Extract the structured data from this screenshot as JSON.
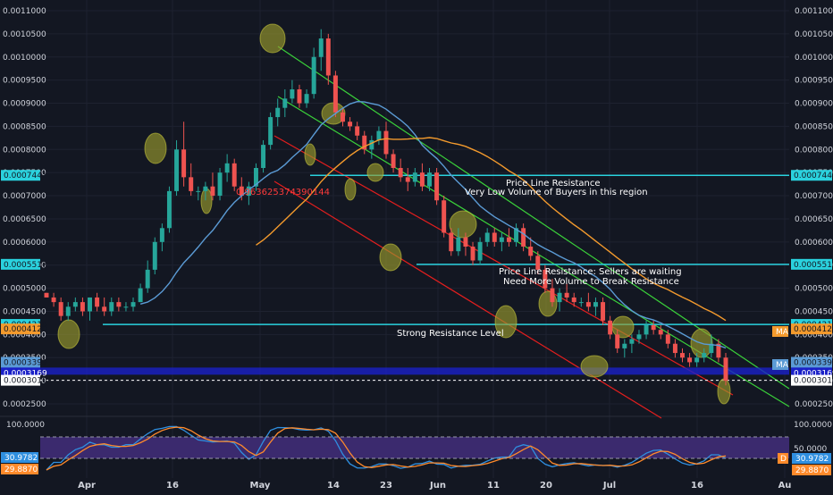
{
  "colors": {
    "background": "#131722",
    "grid": "#1e2230",
    "axis_text": "#d1d4dc",
    "bull": "#26a69a",
    "bear": "#ef5350",
    "ma_fast": "#5b9bd5",
    "ma_slow": "#f39a2d",
    "cyan_line": "#2ad2de",
    "green_channel": "#3ad13a",
    "red_channel": "#e31e1e",
    "highlight": "#9a9a2e",
    "blue_band": "#1a20c8",
    "stoch_band": "#3b2a6e",
    "stoch_k": "#2f8fe0",
    "stoch_d": "#ff8a2b"
  },
  "price_axis": {
    "ticks": [
      "0.0011000",
      "0.0010500",
      "0.0010000",
      "0.0009500",
      "0.0009000",
      "0.0008500",
      "0.0008000",
      "0.0007500",
      "0.0007000",
      "0.0006500",
      "0.0006000",
      "0.0005500",
      "0.0005000",
      "0.0004500",
      "0.0004000",
      "0.0003500",
      "0.0003000",
      "0.0002500"
    ]
  },
  "time_axis": {
    "labels": [
      "Apr",
      "16",
      "May",
      "14",
      "23",
      "Jun",
      "11",
      "20",
      "Jul",
      "16",
      "Au"
    ]
  },
  "price_badges": [
    {
      "text": "0.0007441",
      "color": "#2ad2de",
      "side": "both"
    },
    {
      "text": "0.0005517",
      "color": "#2ad2de",
      "side": "both"
    },
    {
      "text": "0.0004218",
      "color": "#2ad2de",
      "side": "both"
    },
    {
      "text": "0.0004120",
      "color": "#f39a2d",
      "side": "both"
    },
    {
      "text": "0.0003399",
      "color": "#5b9bd5",
      "side": "both"
    },
    {
      "text": "0.0003169",
      "color": "#1a20c8",
      "side": "both"
    },
    {
      "text": "0.0003010",
      "color": "#ffffff",
      "side": "both"
    }
  ],
  "ma_tags": [
    "MA",
    "MA"
  ],
  "stoch": {
    "ticks": [
      "100.0000",
      "50.0000"
    ],
    "badges": [
      {
        "text": "30.9782",
        "color": "#2f8fe0"
      },
      {
        "text": "29.8870",
        "color": "#ff8a2b"
      }
    ],
    "d_tag": "D"
  },
  "annotations": {
    "fib_value": "0.963625374390144",
    "price_line_1": "Price Line Resistance",
    "price_line_1_sub": "Very Low Volume of Buyers in this region",
    "price_line_2": "Price Line Resistance:  Sellers are waiting",
    "price_line_2_sub": "Need More Volume to Break Resistance",
    "strong_resistance": "Strong Resistance Level"
  },
  "chart_data": {
    "type": "candlestick",
    "x_labels": [
      "Apr",
      "16",
      "May",
      "14",
      "23",
      "Jun",
      "11",
      "20",
      "Jul",
      "16"
    ],
    "ylim": [
      0.00023,
      0.00112
    ],
    "y_scale": "linear",
    "grid": true,
    "horizontal_levels": [
      0.0007441,
      0.0005517,
      0.0004218,
      0.0003169
    ],
    "current_close": 0.000301,
    "ohlc": [
      [
        0.00049,
        0.00049,
        0.00048,
        0.00048
      ],
      [
        0.00048,
        0.00049,
        0.00046,
        0.00047
      ],
      [
        0.00047,
        0.00048,
        0.00043,
        0.00044
      ],
      [
        0.00044,
        0.00047,
        0.00043,
        0.00046
      ],
      [
        0.00046,
        0.00048,
        0.00045,
        0.00047
      ],
      [
        0.00047,
        0.00048,
        0.00044,
        0.00045
      ],
      [
        0.00045,
        0.00048,
        0.00043,
        0.00048
      ],
      [
        0.00048,
        0.00049,
        0.00045,
        0.00046
      ],
      [
        0.00046,
        0.00048,
        0.00044,
        0.00045
      ],
      [
        0.00045,
        0.00048,
        0.00044,
        0.00047
      ],
      [
        0.00047,
        0.00048,
        0.00045,
        0.00046
      ],
      [
        0.00046,
        0.00047,
        0.00045,
        0.00046
      ],
      [
        0.00046,
        0.00048,
        0.00045,
        0.00047
      ],
      [
        0.00047,
        0.00051,
        0.00047,
        0.0005
      ],
      [
        0.0005,
        0.00056,
        0.00049,
        0.00054
      ],
      [
        0.00054,
        0.00061,
        0.00053,
        0.0006
      ],
      [
        0.0006,
        0.00064,
        0.00058,
        0.00063
      ],
      [
        0.00063,
        0.00072,
        0.00062,
        0.00071
      ],
      [
        0.00071,
        0.00082,
        0.0007,
        0.0008
      ],
      [
        0.0008,
        0.00086,
        0.00072,
        0.00074
      ],
      [
        0.00074,
        0.00077,
        0.0007,
        0.00071
      ],
      [
        0.00071,
        0.00072,
        0.00069,
        0.00071
      ],
      [
        0.00071,
        0.00073,
        0.00069,
        0.00072
      ],
      [
        0.00072,
        0.00075,
        0.00069,
        0.0007
      ],
      [
        0.0007,
        0.00076,
        0.00069,
        0.00075
      ],
      [
        0.00075,
        0.00079,
        0.00073,
        0.00077
      ],
      [
        0.00077,
        0.00078,
        0.00071,
        0.00072
      ],
      [
        0.00072,
        0.00074,
        0.00069,
        0.0007
      ],
      [
        0.0007,
        0.00073,
        0.00068,
        0.00072
      ],
      [
        0.00072,
        0.00077,
        0.00071,
        0.00076
      ],
      [
        0.00076,
        0.00082,
        0.00075,
        0.00081
      ],
      [
        0.00081,
        0.00088,
        0.0008,
        0.00087
      ],
      [
        0.00087,
        0.00091,
        0.00085,
        0.00089
      ],
      [
        0.00089,
        0.00093,
        0.00087,
        0.00091
      ],
      [
        0.00091,
        0.00095,
        0.0009,
        0.00093
      ],
      [
        0.00093,
        0.00094,
        0.00089,
        0.0009
      ],
      [
        0.0009,
        0.00093,
        0.00089,
        0.00092
      ],
      [
        0.00092,
        0.00102,
        0.00091,
        0.001
      ],
      [
        0.001,
        0.00106,
        0.00097,
        0.00104
      ],
      [
        0.00104,
        0.00105,
        0.00094,
        0.00096
      ],
      [
        0.00096,
        0.00097,
        0.00087,
        0.00088
      ],
      [
        0.00088,
        0.00089,
        0.00085,
        0.00086
      ],
      [
        0.00086,
        0.00087,
        0.00084,
        0.00085
      ],
      [
        0.00085,
        0.00086,
        0.00082,
        0.00083
      ],
      [
        0.00083,
        0.00084,
        0.00079,
        0.0008
      ],
      [
        0.0008,
        0.00083,
        0.00078,
        0.00082
      ],
      [
        0.00082,
        0.00085,
        0.00081,
        0.00084
      ],
      [
        0.00084,
        0.00086,
        0.00078,
        0.00079
      ],
      [
        0.00079,
        0.0008,
        0.00075,
        0.00076
      ],
      [
        0.00076,
        0.00078,
        0.00073,
        0.00074
      ],
      [
        0.00074,
        0.00076,
        0.00071,
        0.00073
      ],
      [
        0.00073,
        0.00076,
        0.00072,
        0.00075
      ],
      [
        0.00075,
        0.00077,
        0.00071,
        0.00072
      ],
      [
        0.00072,
        0.00076,
        0.00071,
        0.00075
      ],
      [
        0.00075,
        0.00076,
        0.00068,
        0.00069
      ],
      [
        0.00069,
        0.0007,
        0.00061,
        0.00062
      ],
      [
        0.00062,
        0.00063,
        0.00057,
        0.00058
      ],
      [
        0.00058,
        0.00063,
        0.00057,
        0.00061
      ],
      [
        0.00061,
        0.00062,
        0.00057,
        0.00059
      ],
      [
        0.00059,
        0.0006,
        0.00055,
        0.00056
      ],
      [
        0.00056,
        0.00061,
        0.00055,
        0.0006
      ],
      [
        0.0006,
        0.00063,
        0.00059,
        0.00062
      ],
      [
        0.00062,
        0.00063,
        0.00059,
        0.0006
      ],
      [
        0.0006,
        0.00062,
        0.00058,
        0.00061
      ],
      [
        0.00061,
        0.00063,
        0.00059,
        0.0006
      ],
      [
        0.0006,
        0.00064,
        0.00059,
        0.00063
      ],
      [
        0.00063,
        0.00064,
        0.00058,
        0.00059
      ],
      [
        0.00059,
        0.00061,
        0.00056,
        0.00057
      ],
      [
        0.00057,
        0.00058,
        0.00053,
        0.00054
      ],
      [
        0.00054,
        0.00055,
        0.00049,
        0.0005
      ],
      [
        0.0005,
        0.00052,
        0.00046,
        0.00047
      ],
      [
        0.00047,
        0.0005,
        0.00045,
        0.00049
      ],
      [
        0.00049,
        0.00051,
        0.00047,
        0.00048
      ],
      [
        0.00048,
        0.00049,
        0.00046,
        0.00047
      ],
      [
        0.00047,
        0.00048,
        0.00046,
        0.00047
      ],
      [
        0.00047,
        0.00049,
        0.00045,
        0.00046
      ],
      [
        0.00046,
        0.00048,
        0.00044,
        0.00047
      ],
      [
        0.00047,
        0.00048,
        0.00042,
        0.00043
      ],
      [
        0.00043,
        0.00044,
        0.00039,
        0.0004
      ],
      [
        0.0004,
        0.00041,
        0.00036,
        0.00037
      ],
      [
        0.00037,
        0.00039,
        0.00035,
        0.00038
      ],
      [
        0.00038,
        0.0004,
        0.00036,
        0.00039
      ],
      [
        0.00039,
        0.00041,
        0.00038,
        0.0004
      ],
      [
        0.0004,
        0.00043,
        0.00039,
        0.00042
      ],
      [
        0.00042,
        0.00043,
        0.0004,
        0.00041
      ],
      [
        0.00041,
        0.00042,
        0.00039,
        0.0004
      ],
      [
        0.0004,
        0.00041,
        0.00037,
        0.00038
      ],
      [
        0.00038,
        0.00039,
        0.00035,
        0.00036
      ],
      [
        0.00036,
        0.00037,
        0.00034,
        0.00035
      ],
      [
        0.00035,
        0.00036,
        0.00033,
        0.00034
      ],
      [
        0.00034,
        0.00036,
        0.00033,
        0.00035
      ],
      [
        0.00035,
        0.00037,
        0.00034,
        0.00036
      ],
      [
        0.00036,
        0.0004,
        0.00035,
        0.00038
      ],
      [
        0.00038,
        0.00039,
        0.00034,
        0.00035
      ],
      [
        0.00035,
        0.00036,
        0.00029,
        0.0003
      ]
    ],
    "moving_averages": [
      {
        "name": "MA",
        "color": "#5b9bd5",
        "last": 0.0003399
      },
      {
        "name": "MA",
        "color": "#f39a2d",
        "last": 0.000412
      }
    ],
    "stochastic": {
      "ylim": [
        0,
        100
      ],
      "k_last": 30.9782,
      "d_last": 29.887
    }
  }
}
